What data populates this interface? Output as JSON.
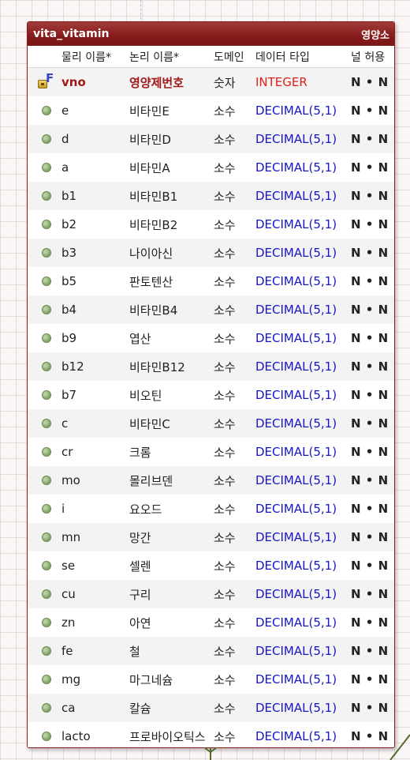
{
  "entity": {
    "name": "vita_vitamin",
    "logical_name": "영양소"
  },
  "columns": {
    "physical": "물리 이름*",
    "logical": "논리 이름*",
    "domain": "도메인",
    "datatype": "데이터 타입",
    "nullable": "널 허용"
  },
  "rows": [
    {
      "physical": "vno",
      "logical": "영양제번호",
      "domain": "숫자",
      "datatype": "INTEGER",
      "nullable": "N • N",
      "kind": "pk-fk",
      "icon": "key-fk-icon"
    },
    {
      "physical": "e",
      "logical": "비타민E",
      "domain": "소수",
      "datatype": "DECIMAL(5,1)",
      "nullable": "N • N",
      "kind": "attr",
      "icon": "attribute-icon"
    },
    {
      "physical": "d",
      "logical": "비타민D",
      "domain": "소수",
      "datatype": "DECIMAL(5,1)",
      "nullable": "N • N",
      "kind": "attr",
      "icon": "attribute-icon"
    },
    {
      "physical": "a",
      "logical": "비타민A",
      "domain": "소수",
      "datatype": "DECIMAL(5,1)",
      "nullable": "N • N",
      "kind": "attr",
      "icon": "attribute-icon"
    },
    {
      "physical": "b1",
      "logical": "비타민B1",
      "domain": "소수",
      "datatype": "DECIMAL(5,1)",
      "nullable": "N • N",
      "kind": "attr",
      "icon": "attribute-icon"
    },
    {
      "physical": "b2",
      "logical": "비타민B2",
      "domain": "소수",
      "datatype": "DECIMAL(5,1)",
      "nullable": "N • N",
      "kind": "attr",
      "icon": "attribute-icon"
    },
    {
      "physical": "b3",
      "logical": "나이아신",
      "domain": "소수",
      "datatype": "DECIMAL(5,1)",
      "nullable": "N • N",
      "kind": "attr",
      "icon": "attribute-icon"
    },
    {
      "physical": "b5",
      "logical": "판토텐산",
      "domain": "소수",
      "datatype": "DECIMAL(5,1)",
      "nullable": "N • N",
      "kind": "attr",
      "icon": "attribute-icon"
    },
    {
      "physical": "b4",
      "logical": "비타민B4",
      "domain": "소수",
      "datatype": "DECIMAL(5,1)",
      "nullable": "N • N",
      "kind": "attr",
      "icon": "attribute-icon"
    },
    {
      "physical": "b9",
      "logical": "엽산",
      "domain": "소수",
      "datatype": "DECIMAL(5,1)",
      "nullable": "N • N",
      "kind": "attr",
      "icon": "attribute-icon"
    },
    {
      "physical": "b12",
      "logical": "비타민B12",
      "domain": "소수",
      "datatype": "DECIMAL(5,1)",
      "nullable": "N • N",
      "kind": "attr",
      "icon": "attribute-icon"
    },
    {
      "physical": "b7",
      "logical": "비오틴",
      "domain": "소수",
      "datatype": "DECIMAL(5,1)",
      "nullable": "N • N",
      "kind": "attr",
      "icon": "attribute-icon"
    },
    {
      "physical": "c",
      "logical": "비타민C",
      "domain": "소수",
      "datatype": "DECIMAL(5,1)",
      "nullable": "N • N",
      "kind": "attr",
      "icon": "attribute-icon"
    },
    {
      "physical": "cr",
      "logical": "크롬",
      "domain": "소수",
      "datatype": "DECIMAL(5,1)",
      "nullable": "N • N",
      "kind": "attr",
      "icon": "attribute-icon"
    },
    {
      "physical": "mo",
      "logical": "몰리브덴",
      "domain": "소수",
      "datatype": "DECIMAL(5,1)",
      "nullable": "N • N",
      "kind": "attr",
      "icon": "attribute-icon"
    },
    {
      "physical": "i",
      "logical": "요오드",
      "domain": "소수",
      "datatype": "DECIMAL(5,1)",
      "nullable": "N • N",
      "kind": "attr",
      "icon": "attribute-icon"
    },
    {
      "physical": "mn",
      "logical": "망간",
      "domain": "소수",
      "datatype": "DECIMAL(5,1)",
      "nullable": "N • N",
      "kind": "attr",
      "icon": "attribute-icon"
    },
    {
      "physical": "se",
      "logical": "셀렌",
      "domain": "소수",
      "datatype": "DECIMAL(5,1)",
      "nullable": "N • N",
      "kind": "attr",
      "icon": "attribute-icon"
    },
    {
      "physical": "cu",
      "logical": "구리",
      "domain": "소수",
      "datatype": "DECIMAL(5,1)",
      "nullable": "N • N",
      "kind": "attr",
      "icon": "attribute-icon"
    },
    {
      "physical": "zn",
      "logical": "아연",
      "domain": "소수",
      "datatype": "DECIMAL(5,1)",
      "nullable": "N • N",
      "kind": "attr",
      "icon": "attribute-icon"
    },
    {
      "physical": "fe",
      "logical": "철",
      "domain": "소수",
      "datatype": "DECIMAL(5,1)",
      "nullable": "N • N",
      "kind": "attr",
      "icon": "attribute-icon"
    },
    {
      "physical": "mg",
      "logical": "마그네슘",
      "domain": "소수",
      "datatype": "DECIMAL(5,1)",
      "nullable": "N • N",
      "kind": "attr",
      "icon": "attribute-icon"
    },
    {
      "physical": "ca",
      "logical": "칼슘",
      "domain": "소수",
      "datatype": "DECIMAL(5,1)",
      "nullable": "N • N",
      "kind": "attr",
      "icon": "attribute-icon"
    },
    {
      "physical": "lacto",
      "logical": "프로바이오틱스",
      "domain": "소수",
      "datatype": "DECIMAL(5,1)",
      "nullable": "N • N",
      "kind": "attr",
      "icon": "attribute-icon"
    }
  ]
}
